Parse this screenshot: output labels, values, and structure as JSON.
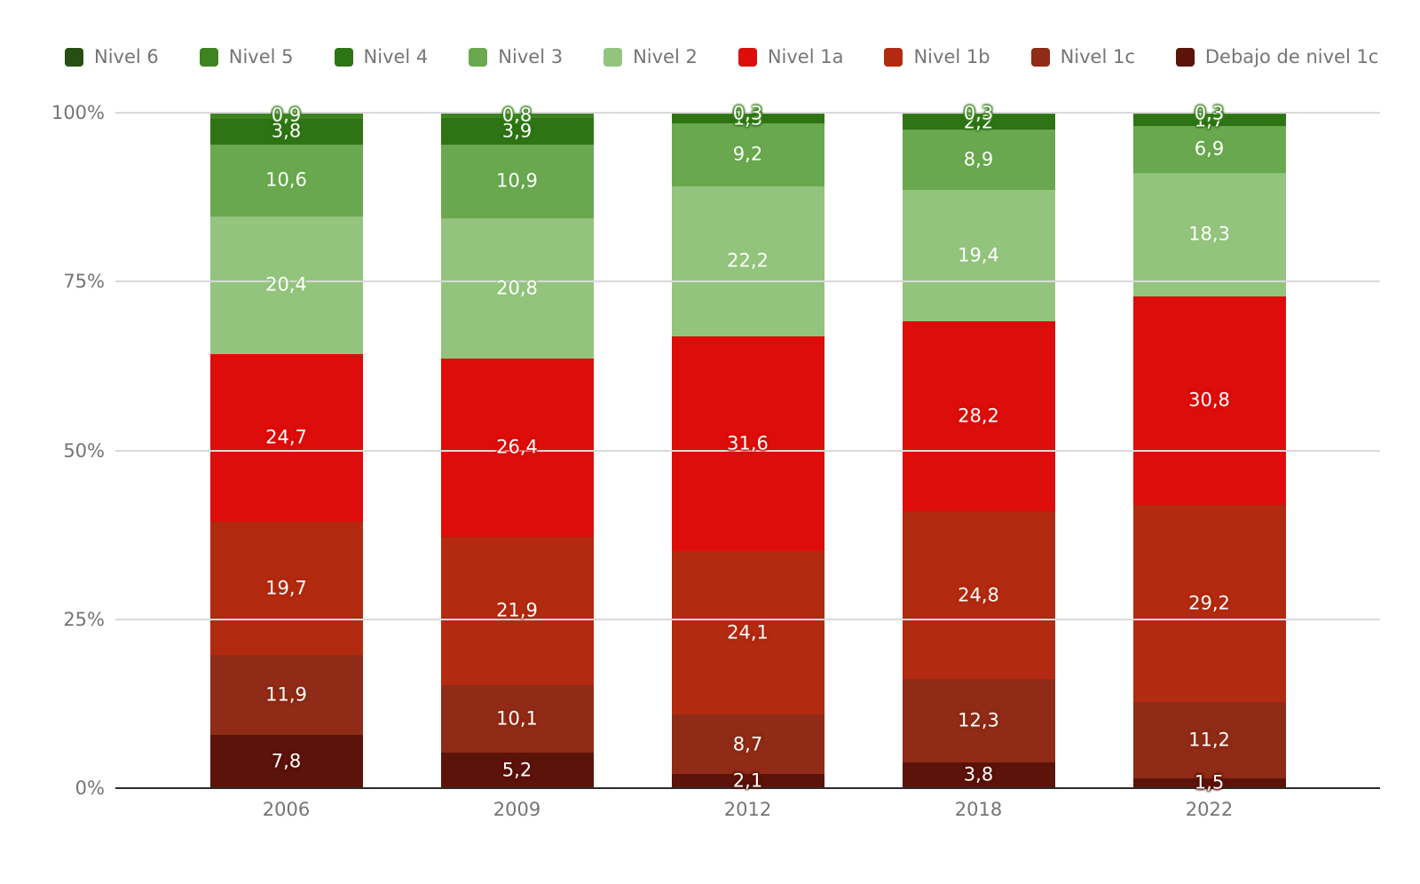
{
  "chart_data": {
    "type": "bar",
    "variant": "stacked-100-percent",
    "grid": true,
    "legend_position": "top",
    "ylim": [
      0,
      100
    ],
    "value_format": "comma-decimal, labels shown inside segments",
    "categories": [
      "2006",
      "2009",
      "2012",
      "2018",
      "2022"
    ],
    "y_ticks": [
      {
        "pct": 0,
        "label": "0%"
      },
      {
        "pct": 25,
        "label": "25%"
      },
      {
        "pct": 50,
        "label": "50%"
      },
      {
        "pct": 75,
        "label": "75%"
      },
      {
        "pct": 100,
        "label": "100%"
      }
    ],
    "series": [
      {
        "name": "Nivel 6",
        "color": "#274e13",
        "values": [
          0,
          0,
          0,
          0,
          0
        ],
        "labels": [
          "",
          "",
          "",
          "",
          ""
        ]
      },
      {
        "name": "Nivel 5",
        "color": "#3d8420",
        "values": [
          0.9,
          0.8,
          0.3,
          0.3,
          0.3
        ],
        "labels": [
          "0,9",
          "0,8",
          "0,3",
          "0,3",
          "0,3"
        ]
      },
      {
        "name": "Nivel 4",
        "color": "#2e7414",
        "values": [
          3.8,
          3.9,
          1.3,
          2.2,
          1.7
        ],
        "labels": [
          "3,8",
          "3,9",
          "1,3",
          "2,2",
          "1,7"
        ]
      },
      {
        "name": "Nivel 3",
        "color": "#6aa84f",
        "values": [
          10.6,
          10.9,
          9.2,
          8.9,
          6.9
        ],
        "labels": [
          "10,6",
          "10,9",
          "9,2",
          "8,9",
          "6,9"
        ]
      },
      {
        "name": "Nivel 2",
        "color": "#93c47d",
        "values": [
          20.4,
          20.8,
          22.2,
          19.4,
          18.3
        ],
        "labels": [
          "20,4",
          "20,8",
          "22,2",
          "19,4",
          "18,3"
        ]
      },
      {
        "name": "Nivel 1a",
        "color": "#dc0d0a",
        "values": [
          24.7,
          26.4,
          31.6,
          28.2,
          30.8
        ],
        "labels": [
          "24,7",
          "26,4",
          "31,6",
          "28,2",
          "30,8"
        ]
      },
      {
        "name": "Nivel 1b",
        "color": "#b22a10",
        "values": [
          19.7,
          21.9,
          24.1,
          24.8,
          29.2
        ],
        "labels": [
          "19,7",
          "21,9",
          "24,1",
          "24,8",
          "29,2"
        ]
      },
      {
        "name": "Nivel 1c",
        "color": "#8f2b16",
        "values": [
          11.9,
          10.1,
          8.7,
          12.3,
          11.2
        ],
        "labels": [
          "11,9",
          "10,1",
          "8,7",
          "12,3",
          "11,2"
        ]
      },
      {
        "name": "Debajo de nivel 1c",
        "color": "#5b130a",
        "values": [
          7.8,
          5.2,
          2.1,
          3.8,
          1.5
        ],
        "labels": [
          "7,8",
          "5,2",
          "2,1",
          "3,8",
          "1,5"
        ]
      }
    ],
    "colors": {
      "grid": "#d9d9d9",
      "axis_line": "#2b2b2b",
      "axis_text": "#757575",
      "legend_text": "#757575",
      "segment_label_text": "#ffffff"
    }
  }
}
